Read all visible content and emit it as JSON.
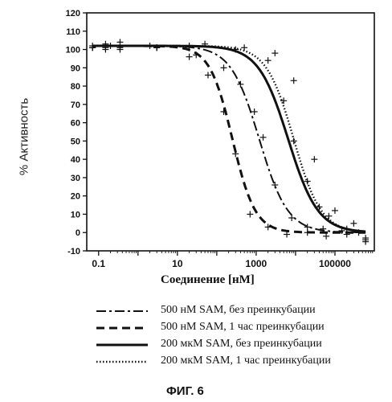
{
  "chart_data": {
    "type": "line",
    "ylabel": "% Активность",
    "xlabel": "Соединение [нМ]",
    "caption": "ФИГ. 6",
    "x_scale": "log",
    "xlim": [
      0.05,
      1000000
    ],
    "ylim": [
      -10,
      120
    ],
    "x_ticks": [
      0.1,
      10,
      1000,
      100000
    ],
    "x_tick_labels": [
      "0.1",
      "10",
      "1000",
      "100000"
    ],
    "y_ticks": [
      -10,
      0,
      10,
      20,
      30,
      40,
      50,
      60,
      70,
      80,
      90,
      100,
      110,
      120
    ],
    "y_tick_labels": [
      "-10",
      "0",
      "10",
      "20",
      "30",
      "40",
      "50",
      "60",
      "70",
      "80",
      "90",
      "100",
      "110",
      "120"
    ],
    "grid": false,
    "legend_position": "bottom",
    "series": [
      {
        "name": "500 нМ SAM, без преинкубации",
        "style": "dashdot",
        "fit": {
          "top": 102,
          "bottom": 0,
          "ic50": 1200,
          "hill": 1.2
        },
        "points": [
          [
            0.07,
            101
          ],
          [
            0.15,
            100
          ],
          [
            0.35,
            101
          ],
          [
            3,
            101
          ],
          [
            30,
            97
          ],
          [
            150,
            90
          ],
          [
            400,
            81
          ],
          [
            900,
            66
          ],
          [
            1500,
            52
          ],
          [
            3000,
            26
          ],
          [
            8000,
            8
          ],
          [
            20000,
            3
          ],
          [
            50000,
            2
          ],
          [
            150000,
            1
          ],
          [
            400000,
            0
          ]
        ]
      },
      {
        "name": "500 нМ SAM, 1 час преинкубации",
        "style": "dashed",
        "fit": {
          "top": 102,
          "bottom": 0,
          "ic50": 250,
          "hill": 1.5
        },
        "points": [
          [
            0.07,
            101
          ],
          [
            0.15,
            103
          ],
          [
            0.35,
            100
          ],
          [
            3,
            101
          ],
          [
            20,
            96
          ],
          [
            60,
            86
          ],
          [
            150,
            66
          ],
          [
            300,
            43
          ],
          [
            700,
            10
          ],
          [
            2000,
            3
          ],
          [
            6000,
            -1
          ],
          [
            20000,
            0
          ],
          [
            60000,
            -2
          ],
          [
            200000,
            -1
          ],
          [
            600000,
            -3
          ]
        ]
      },
      {
        "name": "200 мкМ SAM, без преинкубации",
        "style": "solid",
        "fit": {
          "top": 102,
          "bottom": 0,
          "ic50": 6500,
          "hill": 1.15
        },
        "points": [
          [
            0.07,
            102
          ],
          [
            0.15,
            101
          ],
          [
            0.35,
            104
          ],
          [
            3,
            101
          ],
          [
            20,
            102
          ],
          [
            300,
            100
          ],
          [
            2000,
            94
          ],
          [
            5000,
            72
          ],
          [
            9000,
            50
          ],
          [
            20000,
            28
          ],
          [
            40000,
            14
          ],
          [
            70000,
            9
          ],
          [
            200000,
            2
          ],
          [
            600000,
            -4
          ]
        ]
      },
      {
        "name": "200 мкМ SAM, 1 час преинкубации",
        "style": "dotted",
        "fit": {
          "top": 102,
          "bottom": 0,
          "ic50": 9000,
          "hill": 1.25
        },
        "points": [
          [
            0.07,
            101
          ],
          [
            0.2,
            102
          ],
          [
            2,
            102
          ],
          [
            50,
            103
          ],
          [
            500,
            101
          ],
          [
            3000,
            98
          ],
          [
            9000,
            83
          ],
          [
            30000,
            40
          ],
          [
            100000,
            12
          ],
          [
            300000,
            5
          ],
          [
            600000,
            -5
          ]
        ]
      }
    ]
  }
}
